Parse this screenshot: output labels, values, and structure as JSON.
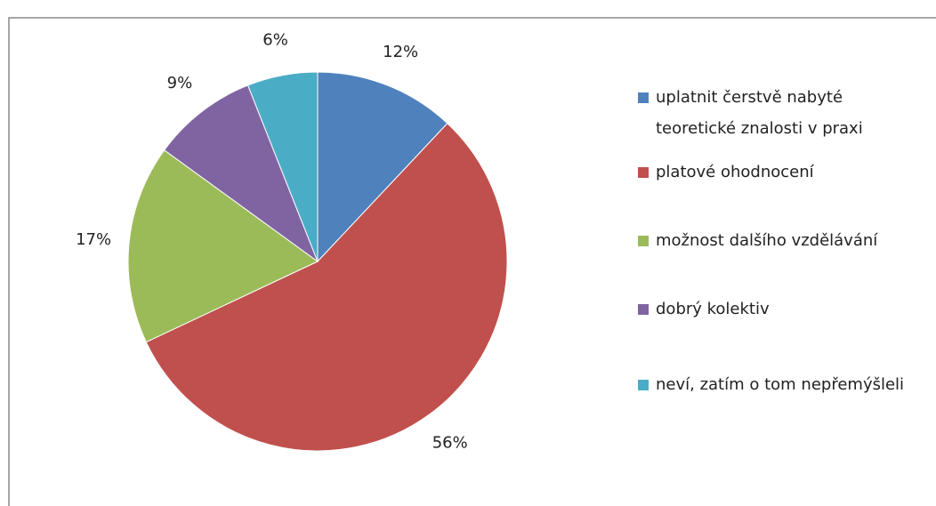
{
  "chart_data": {
    "type": "pie",
    "categories": [
      "uplatnit čerstvě nabyté teoretické znalosti v praxi",
      "platové ohodnocení",
      "možnost dalšího vzdělávání",
      "dobrý kolektiv",
      "neví, zatím o tom nepřemýšleli"
    ],
    "values": [
      12,
      56,
      17,
      9,
      6
    ],
    "value_labels": [
      "12%",
      "56%",
      "17%",
      "9%",
      "6%"
    ],
    "colors": [
      "#4f81bd",
      "#c0504d",
      "#9bbb59",
      "#8064a2",
      "#4bacc6"
    ],
    "legend": "right"
  }
}
